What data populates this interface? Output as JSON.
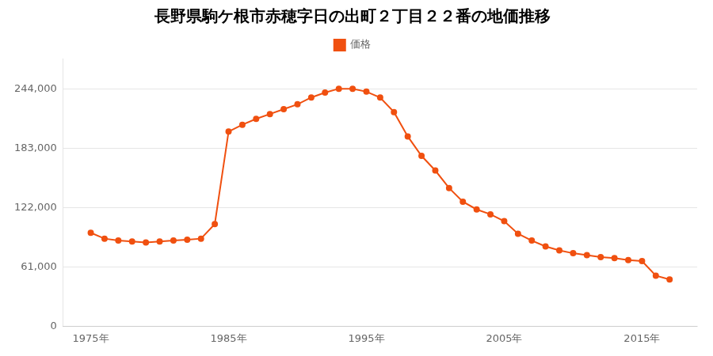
{
  "chart_data": {
    "type": "line",
    "title": "長野県駒ケ根市赤穂字日の出町２丁目２２番の地価推移",
    "x": [
      1975,
      1976,
      1977,
      1978,
      1979,
      1980,
      1981,
      1982,
      1983,
      1984,
      1985,
      1986,
      1987,
      1988,
      1989,
      1990,
      1991,
      1992,
      1993,
      1994,
      1995,
      1996,
      1997,
      1998,
      1999,
      2000,
      2001,
      2002,
      2003,
      2004,
      2005,
      2006,
      2007,
      2008,
      2009,
      2010,
      2011,
      2012,
      2013,
      2014,
      2015,
      2016,
      2017
    ],
    "series": [
      {
        "name": "価格",
        "color": "#f05010",
        "marker": "circle",
        "line_style": "solid",
        "values": [
          96000,
          90000,
          88000,
          87000,
          86000,
          87000,
          88000,
          89000,
          90000,
          105000,
          200000,
          207000,
          213000,
          218000,
          223000,
          228000,
          235000,
          240000,
          244000,
          244000,
          241000,
          235000,
          220000,
          195000,
          175000,
          160000,
          142000,
          128000,
          120000,
          115000,
          108000,
          95000,
          88000,
          82000,
          78000,
          75000,
          73000,
          71000,
          70000,
          68000,
          67000,
          52000,
          48000
        ]
      }
    ],
    "xlim": [
      1973,
      2019
    ],
    "xticks": [
      {
        "value": 1975,
        "label": "1975年"
      },
      {
        "value": 1985,
        "label": "1985年"
      },
      {
        "value": 1995,
        "label": "1995年"
      },
      {
        "value": 2005,
        "label": "2005年"
      },
      {
        "value": 2015,
        "label": "2015年"
      }
    ],
    "ylim": [
      0,
      275000
    ],
    "yticks": [
      0,
      {
        "value": 61000,
        "label": "61,000"
      },
      {
        "value": 122000,
        "label": "122,000"
      },
      {
        "value": 183000,
        "label": "183,000"
      },
      {
        "value": 244000,
        "label": "244,000"
      }
    ],
    "grid": true,
    "legend": "top"
  }
}
